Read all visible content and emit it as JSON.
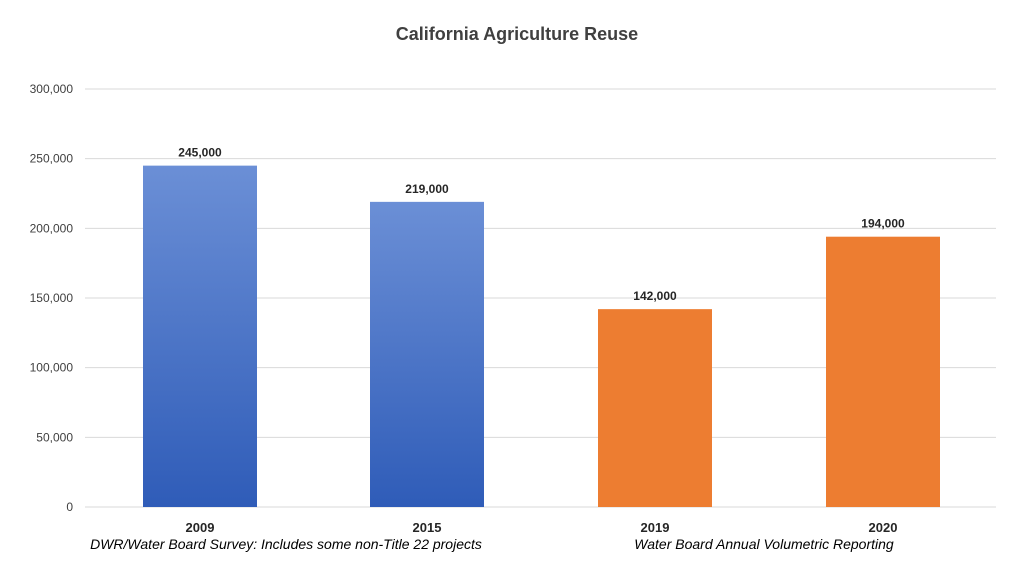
{
  "chart_data": {
    "type": "bar",
    "title": "California Agriculture Reuse",
    "categories": [
      "2009",
      "2015",
      "2019",
      "2020"
    ],
    "values": [
      245000,
      219000,
      142000,
      194000
    ],
    "data_labels": [
      "245,000",
      "219,000",
      "142,000",
      "194,000"
    ],
    "bar_colors": [
      "#4472c4",
      "#4472c4",
      "#ed7d31",
      "#ed7d31"
    ],
    "bar_gradient_top": [
      "#6b8fd6",
      "#6b8fd6",
      null,
      null
    ],
    "bar_gradient_bottom": [
      "#2f5cb8",
      "#2f5cb8",
      null,
      null
    ],
    "ylim": [
      0,
      300000
    ],
    "y_ticks": [
      0,
      50000,
      100000,
      150000,
      200000,
      250000,
      300000
    ],
    "y_tick_labels": [
      "0",
      "50,000",
      "100,000",
      "150,000",
      "200,000",
      "250,000",
      "300,000"
    ],
    "xlabel": "",
    "ylabel": "",
    "grid": true,
    "legend": "none",
    "group_captions": [
      "DWR/Water Board Survey:  Includes some non-Title 22 projects",
      "Water Board Annual Volumetric Reporting"
    ]
  }
}
